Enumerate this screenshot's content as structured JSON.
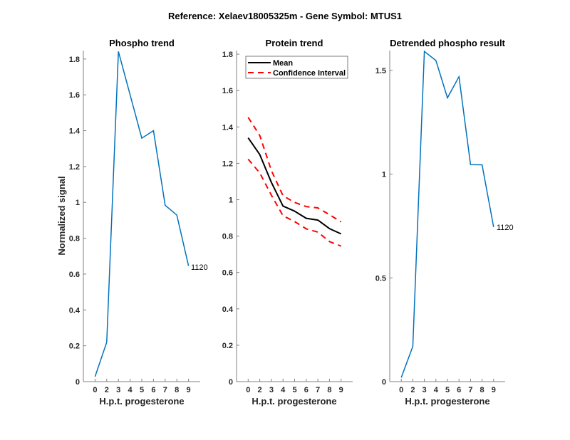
{
  "figure": {
    "suptitle": "Reference:  Xelaev18005325m - Gene Symbol:  MTUS1"
  },
  "colors": {
    "series_blue": "#0072bd",
    "mean_black": "#000000",
    "ci_red": "#ff0000",
    "axis_gray": "#808080",
    "tick_text": "#262626"
  },
  "chart_data": [
    {
      "type": "line",
      "title": "Phospho trend",
      "xlabel": "H.p.t. progesterone",
      "ylabel": "Normalized signal",
      "x_tick_labels": [
        "0",
        "2",
        "3",
        "4",
        "5",
        "6",
        "7",
        "8",
        "9"
      ],
      "x_index": [
        1,
        2,
        3,
        4,
        5,
        6,
        7,
        8,
        9
      ],
      "xlim": [
        0,
        10
      ],
      "ylim": [
        0,
        1.847
      ],
      "y_ticks": [
        0,
        0.2,
        0.4,
        0.6,
        0.8,
        1,
        1.2,
        1.4,
        1.6,
        1.8
      ],
      "y_tick_labels": [
        "0",
        "0.2",
        "0.4",
        "0.6",
        "0.8",
        "1",
        "1.2",
        "1.4",
        "1.6",
        "1.8"
      ],
      "series": [
        {
          "name": "phospho",
          "values": [
            0.028,
            0.22,
            1.842,
            1.6,
            1.358,
            1.4,
            0.984,
            0.929,
            0.646
          ]
        }
      ],
      "annotation": "1120",
      "grid": false
    },
    {
      "type": "line",
      "title": "Protein trend",
      "xlabel": "H.p.t. progesterone",
      "ylabel": "",
      "x_tick_labels": [
        "0",
        "2",
        "3",
        "4",
        "5",
        "6",
        "7",
        "8",
        "9"
      ],
      "x_index": [
        1,
        2,
        3,
        4,
        5,
        6,
        7,
        8,
        9
      ],
      "xlim": [
        0,
        10
      ],
      "ylim": [
        0,
        1.82
      ],
      "y_ticks": [
        0,
        0.2,
        0.4,
        0.6,
        0.8,
        1,
        1.2,
        1.4,
        1.6,
        1.8
      ],
      "y_tick_labels": [
        "0",
        "0.2",
        "0.4",
        "0.6",
        "0.8",
        "1",
        "1.2",
        "1.4",
        "1.6",
        "1.8"
      ],
      "series": [
        {
          "name": "Mean",
          "values": [
            1.34,
            1.248,
            1.095,
            0.965,
            0.937,
            0.898,
            0.888,
            0.841,
            0.812
          ]
        },
        {
          "name": "Confidence Interval",
          "values": [
            1.453,
            1.353,
            1.16,
            1.022,
            0.985,
            0.962,
            0.955,
            0.918,
            0.878
          ]
        },
        {
          "name": "Confidence Interval lower",
          "values": [
            1.223,
            1.147,
            1.025,
            0.912,
            0.88,
            0.84,
            0.822,
            0.77,
            0.745
          ]
        }
      ],
      "legend": {
        "entries": [
          "Mean",
          "Confidence Interval"
        ],
        "placement": "top-right"
      },
      "grid": false
    },
    {
      "type": "line",
      "title": "Detrended phospho result",
      "xlabel": "H.p.t. progesterone",
      "ylabel": "",
      "x_tick_labels": [
        "0",
        "2",
        "3",
        "4",
        "5",
        "6",
        "7",
        "8",
        "9"
      ],
      "x_index": [
        1,
        2,
        3,
        4,
        5,
        6,
        7,
        8,
        9
      ],
      "xlim": [
        0,
        10
      ],
      "ylim": [
        0,
        1.596
      ],
      "y_ticks": [
        0,
        0.5,
        1,
        1.5
      ],
      "y_tick_labels": [
        "0",
        "0.5",
        "1",
        "1.5"
      ],
      "series": [
        {
          "name": "detrended",
          "values": [
            0.02,
            0.17,
            1.592,
            1.548,
            1.368,
            1.47,
            1.046,
            1.045,
            0.745
          ]
        }
      ],
      "annotation": "1120",
      "grid": false
    }
  ]
}
